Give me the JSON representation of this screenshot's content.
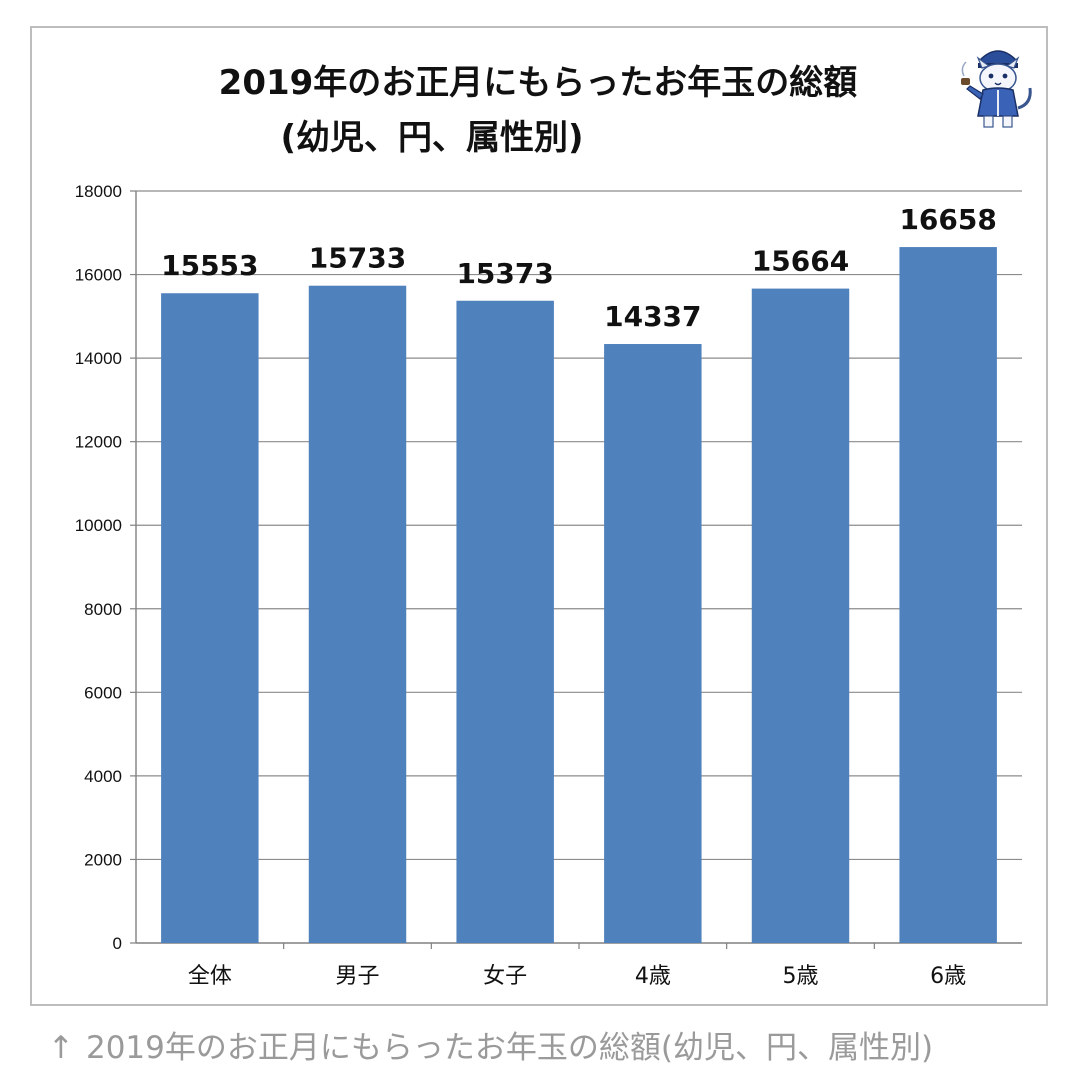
{
  "title_lines": [
    "2019年のお正月にもらったお年玉の総額",
    "(幼児、円、属性別)"
  ],
  "caption": {
    "arrow": "↑",
    "text": "2019年のお正月にもらったお年玉の総額(幼児、円、属性別)"
  },
  "mascot": {
    "icon": "cat-detective-mascot-icon"
  },
  "colors": {
    "bar": "#4f81bd",
    "gridline": "#8c8c8c",
    "axis": "#808080",
    "frame_border": "#bdbdbd",
    "caption": "#9a9a9a"
  },
  "chart_data": {
    "type": "bar",
    "title": "2019年のお正月にもらったお年玉の総額(幼児、円、属性別)",
    "categories": [
      "全体",
      "男子",
      "女子",
      "4歳",
      "5歳",
      "6歳"
    ],
    "values": [
      15553,
      15733,
      15373,
      14337,
      15664,
      16658
    ],
    "data_labels": [
      "15553",
      "15733",
      "15373",
      "14337",
      "15664",
      "16658"
    ],
    "xlabel": "",
    "ylabel": "",
    "ylim": [
      0,
      18000
    ],
    "yticks": [
      0,
      2000,
      4000,
      6000,
      8000,
      10000,
      12000,
      14000,
      16000,
      18000
    ],
    "ytick_labels": [
      "0",
      "2000",
      "4000",
      "6000",
      "8000",
      "10000",
      "12000",
      "14000",
      "16000",
      "18000"
    ],
    "grid": true,
    "legend": "none"
  }
}
